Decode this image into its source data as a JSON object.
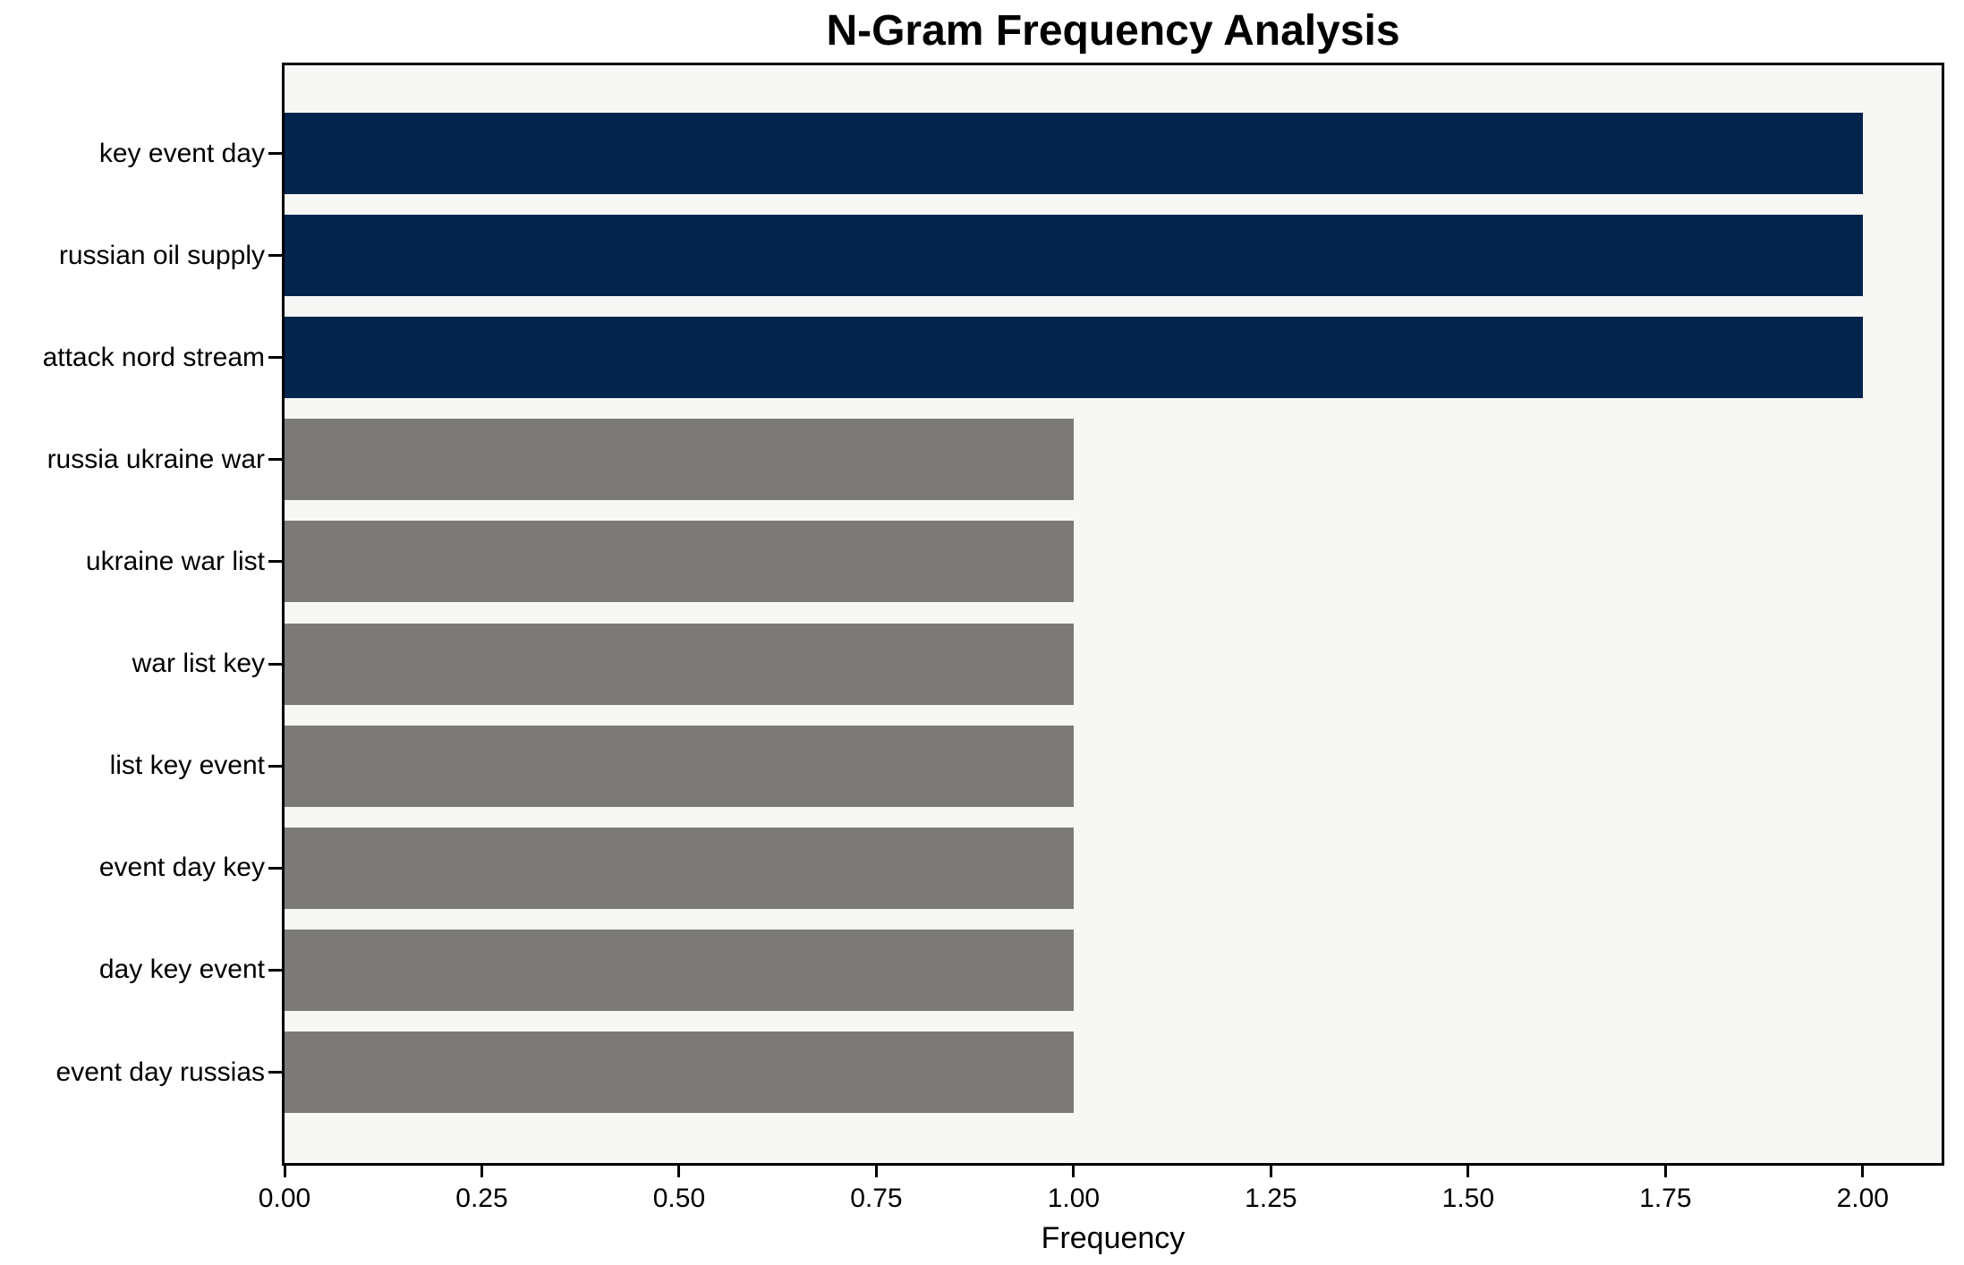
{
  "chart_data": {
    "type": "bar",
    "orientation": "horizontal",
    "title": "N-Gram Frequency Analysis",
    "xlabel": "Frequency",
    "ylabel": "",
    "categories": [
      "key event day",
      "russian oil supply",
      "attack nord stream",
      "russia ukraine war",
      "ukraine war list",
      "war list key",
      "list key event",
      "event day key",
      "day key event",
      "event day russias"
    ],
    "values": [
      2,
      2,
      2,
      1,
      1,
      1,
      1,
      1,
      1,
      1
    ],
    "bar_colors": [
      "#03254d",
      "#03254d",
      "#03254d",
      "#7b7a77",
      "#7b7a77",
      "#7b7a77",
      "#7b7a77",
      "#7b7a77",
      "#7b7a77",
      "#7b7a77"
    ],
    "x_ticks": [
      "0.00",
      "0.25",
      "0.50",
      "0.75",
      "1.00",
      "1.25",
      "1.50",
      "1.75",
      "2.00"
    ],
    "x_tick_values": [
      0,
      0.25,
      0.5,
      0.75,
      1.0,
      1.25,
      1.5,
      1.75,
      2.0
    ],
    "xlim": [
      0,
      2.1
    ],
    "grid": false,
    "legend": null,
    "colors": {
      "highlight_bar": "#03254d",
      "default_bar": "#7b7a77",
      "plot_background": "#f7f7f6",
      "figure_background": "#ffffff",
      "axis": "#000000"
    }
  }
}
